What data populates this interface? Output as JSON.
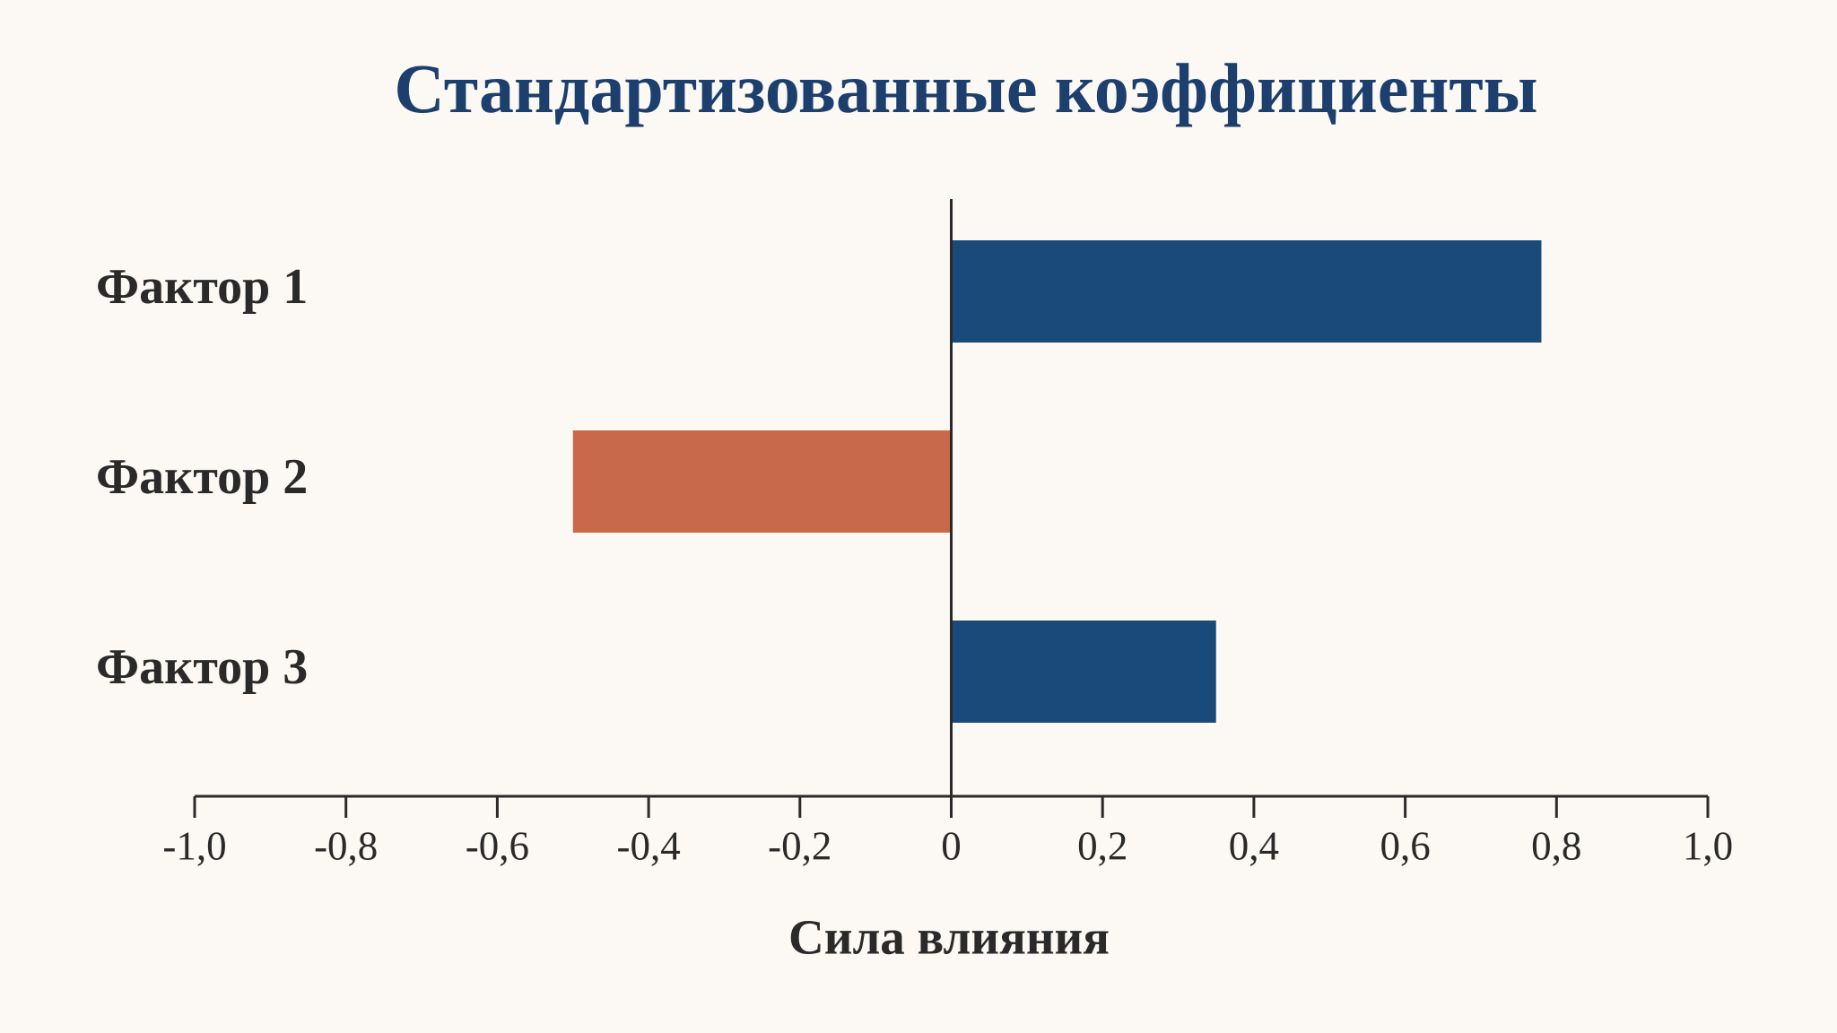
{
  "chart_data": {
    "type": "bar",
    "orientation": "horizontal",
    "title": "Стандартизованные коэффициенты",
    "x_label": "Сила влияния",
    "categories": [
      "Фактор 1",
      "Фактор 2",
      "Фактор 3"
    ],
    "values": [
      0.78,
      -0.5,
      0.35
    ],
    "colors": [
      "#1a4a7a",
      "#c8694a",
      "#1a4a7a"
    ],
    "xlim": [
      -1,
      1
    ],
    "xticks": [
      {
        "value": -1,
        "label": "-1,0"
      },
      {
        "value": -0.8,
        "label": "-0,8"
      },
      {
        "value": -0.6,
        "label": "-0,6"
      },
      {
        "value": -0.4,
        "label": "-0,4"
      },
      {
        "value": -0.2,
        "label": "-0,2"
      },
      0,
      {
        "value": 0.2,
        "label": "0,2"
      },
      {
        "value": 0.4,
        "label": "0,4"
      },
      {
        "value": 0.6,
        "label": "0,6"
      },
      {
        "value": 0.8,
        "label": "0,8"
      },
      {
        "value": 1,
        "label": "1,0"
      }
    ],
    "grid": false
  }
}
